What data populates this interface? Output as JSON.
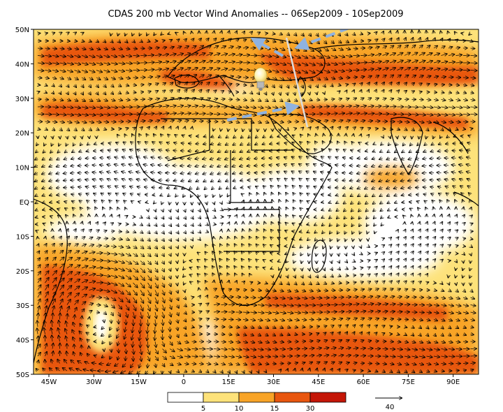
{
  "title": "CDAS 200 mb Vector Wind Anomalies -- 06Sep2009 - 10Sep2009",
  "latitude_labels": [
    "50N",
    "40N",
    "30N",
    "20N",
    "10N",
    "EQ",
    "10S",
    "20S",
    "30S",
    "40S",
    "50S"
  ],
  "longitude_labels": [
    "45W",
    "30W",
    "15W",
    "0",
    "15E",
    "30E",
    "45E",
    "60E",
    "75E",
    "90E"
  ],
  "legend": {
    "levels": [
      "5",
      "10",
      "15",
      "30"
    ],
    "colors": [
      "#ffffff",
      "#fde27a",
      "#f8a427",
      "#e8560f",
      "#c41607"
    ]
  },
  "reference_vector_label": "40",
  "colors": {
    "land_outline": "#000000",
    "arrow_annotation": "#8fb2e0",
    "section_line": "#dcdcdc"
  },
  "icons": [
    "lightbulb-icon"
  ]
}
